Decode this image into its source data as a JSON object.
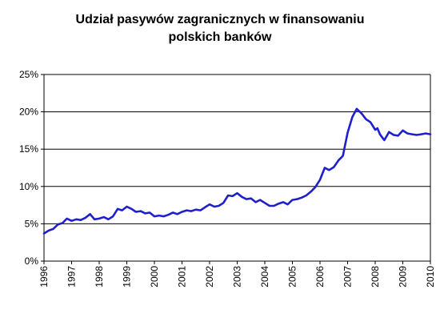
{
  "chart_data": {
    "type": "line",
    "title_line1": "Udział pasywów zagranicznych w finansowaniu",
    "title_line2": "polskich banków",
    "xlabel": "",
    "ylabel": "",
    "ylim": [
      0,
      25
    ],
    "yticks": [
      "0%",
      "5%",
      "10%",
      "15%",
      "20%",
      "25%"
    ],
    "xticks": [
      "1996",
      "1997",
      "1998",
      "1999",
      "2000",
      "2001",
      "2002",
      "2003",
      "2004",
      "2005",
      "2006",
      "2007",
      "2008",
      "2009",
      "2010"
    ],
    "xlim": [
      1996,
      2010
    ],
    "grid": "horizontal",
    "legend": "none",
    "line_color": "#1f1fcc",
    "series": [
      {
        "x": [
          1996.0,
          1996.17,
          1996.33,
          1996.5,
          1996.67,
          1996.83,
          1997.0,
          1997.17,
          1997.33,
          1997.5,
          1997.67,
          1997.83,
          1998.0,
          1998.17,
          1998.33,
          1998.5,
          1998.67,
          1998.83,
          1999.0,
          1999.17,
          1999.33,
          1999.5,
          1999.67,
          1999.83,
          2000.0,
          2000.17,
          2000.33,
          2000.5,
          2000.67,
          2000.83,
          2001.0,
          2001.17,
          2001.33,
          2001.5,
          2001.67,
          2001.83,
          2002.0,
          2002.17,
          2002.33,
          2002.5,
          2002.67,
          2002.83,
          2003.0,
          2003.17,
          2003.33,
          2003.5,
          2003.67,
          2003.83,
          2004.0,
          2004.17,
          2004.33,
          2004.5,
          2004.67,
          2004.83,
          2005.0,
          2005.17,
          2005.33,
          2005.5,
          2005.67,
          2005.83,
          2006.0,
          2006.17,
          2006.33,
          2006.5,
          2006.67,
          2006.83,
          2007.0,
          2007.17,
          2007.33,
          2007.5,
          2007.67,
          2007.83,
          2008.0,
          2008.08,
          2008.17,
          2008.25,
          2008.33,
          2008.5,
          2008.67,
          2008.83,
          2009.0,
          2009.17,
          2009.33,
          2009.5,
          2009.67,
          2009.83,
          2010.0
        ],
        "values": [
          3.7,
          4.1,
          4.3,
          4.9,
          5.1,
          5.7,
          5.4,
          5.6,
          5.5,
          5.8,
          6.3,
          5.6,
          5.7,
          5.9,
          5.6,
          6.0,
          7.0,
          6.8,
          7.3,
          7.0,
          6.6,
          6.7,
          6.4,
          6.5,
          6.0,
          6.1,
          6.0,
          6.2,
          6.5,
          6.3,
          6.6,
          6.8,
          6.7,
          6.9,
          6.8,
          7.2,
          7.6,
          7.3,
          7.4,
          7.8,
          8.8,
          8.7,
          9.1,
          8.6,
          8.3,
          8.4,
          7.9,
          8.2,
          7.8,
          7.4,
          7.4,
          7.7,
          7.9,
          7.6,
          8.2,
          8.3,
          8.5,
          8.8,
          9.3,
          9.9,
          10.9,
          12.5,
          12.2,
          12.6,
          13.5,
          14.1,
          17.2,
          19.3,
          20.4,
          19.8,
          19.0,
          18.6,
          17.6,
          17.8,
          17.0,
          16.6,
          16.2,
          17.3,
          16.9,
          16.8,
          17.5,
          17.1,
          17.0,
          16.9,
          17.0,
          17.1,
          17.0
        ]
      }
    ]
  }
}
